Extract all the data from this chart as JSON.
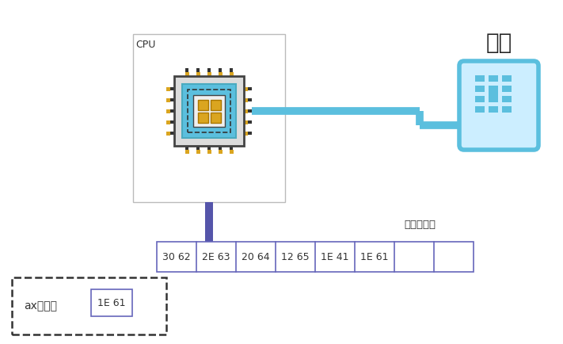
{
  "bg_color": "#ffffff",
  "cpu_label": "CPU",
  "keyboard_label": "键盘",
  "buffer_label": "键盘缓冲区",
  "register_label": "ax寄存器",
  "buffer_cells": [
    "30 62",
    "2E 63",
    "20 64",
    "12 65",
    "1E 41",
    "1E 61",
    "",
    ""
  ],
  "register_value": "1E 61",
  "chip_pin_color": "#DAA520",
  "chip_pin_dark": "#333333",
  "chip_outer_color": "#e0e0e0",
  "chip_inner_color": "#5bbfde",
  "chip_gold_color": "#DAA520",
  "connector_color": "#5bbfde",
  "bus_color": "#5555aa",
  "cell_border_color": "#6666bb",
  "dashed_box_color": "#333333",
  "text_color": "#333333"
}
